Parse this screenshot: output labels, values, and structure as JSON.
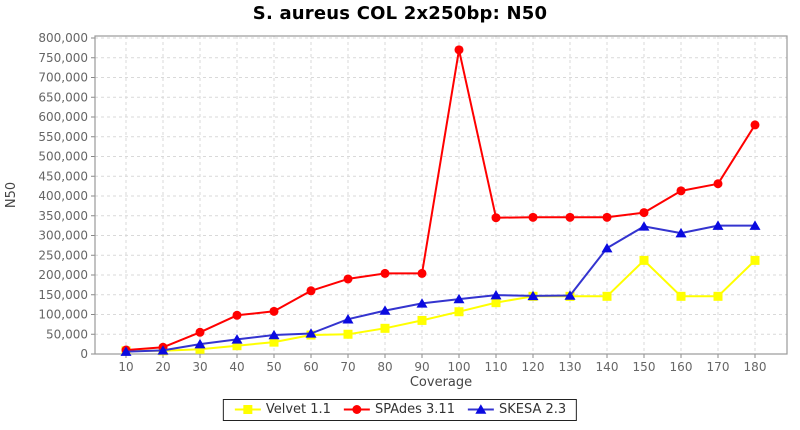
{
  "chart_data": {
    "type": "line",
    "title": "S. aureus COL 2x250bp: N50",
    "xlabel": "Coverage",
    "ylabel": "N50",
    "x": [
      10,
      20,
      30,
      40,
      50,
      60,
      70,
      80,
      90,
      100,
      110,
      120,
      130,
      140,
      150,
      160,
      170,
      180
    ],
    "ylim": [
      0,
      800000
    ],
    "ytick_step": 50000,
    "ytick_format": "comma",
    "grid": true,
    "grid_style": "dashed",
    "legend_position": "bottom-center",
    "colors": {
      "plot_border": "#999999",
      "gridline": "#d9d9d9",
      "tick": "#888888",
      "tick_label": "#666666",
      "axis_label": "#444444",
      "title": "#000000",
      "background": "#ffffff"
    },
    "series": [
      {
        "name": "Velvet 1.1",
        "marker": "square",
        "color": "#ffff00",
        "marker_color": "#ffff00",
        "values": [
          8000,
          8000,
          12000,
          21000,
          30000,
          48000,
          50000,
          65000,
          85000,
          107000,
          130000,
          146000,
          146000,
          146000,
          237000,
          146000,
          146000,
          237000
        ]
      },
      {
        "name": "SPAdes 3.11",
        "marker": "circle",
        "color": "#ff0000",
        "marker_color": "#ff0000",
        "values": [
          10000,
          17000,
          55000,
          98000,
          108000,
          160000,
          190000,
          204000,
          204000,
          770000,
          345000,
          346000,
          346000,
          346000,
          358000,
          413000,
          431000,
          580000
        ]
      },
      {
        "name": "SKESA 2.3",
        "marker": "triangle",
        "color": "#3434cf",
        "marker_color": "#0a0ae0",
        "values": [
          6000,
          9000,
          25000,
          37000,
          48000,
          52000,
          88000,
          110000,
          128000,
          139000,
          149000,
          147000,
          148000,
          268000,
          323000,
          306000,
          325000,
          325000
        ]
      }
    ]
  }
}
